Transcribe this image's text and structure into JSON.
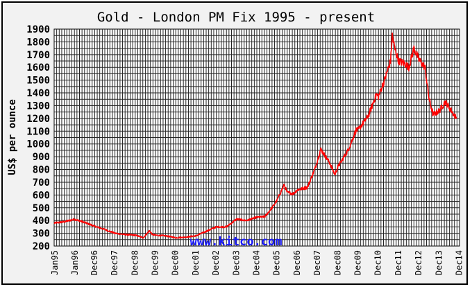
{
  "chart_data": {
    "type": "line",
    "title": "Gold - London PM Fix 1995 - present",
    "ylabel": "US$ per ounce",
    "xlabel": "",
    "watermark": "www.kitco.com",
    "ylim": [
      200,
      1900
    ],
    "yticks": [
      200,
      300,
      400,
      500,
      600,
      700,
      800,
      900,
      1000,
      1100,
      1200,
      1300,
      1400,
      1500,
      1600,
      1700,
      1800,
      1900
    ],
    "xlim": [
      1995.0,
      2015.0
    ],
    "xticks": [
      {
        "label": "Jan95",
        "t": 1995.0
      },
      {
        "label": "Jan96",
        "t": 1996.0
      },
      {
        "label": "Dec96",
        "t": 1996.95
      },
      {
        "label": "Dec97",
        "t": 1997.95
      },
      {
        "label": "Dec98",
        "t": 1998.95
      },
      {
        "label": "Dec99",
        "t": 1999.95
      },
      {
        "label": "Dec00",
        "t": 2000.95
      },
      {
        "label": "Dec01",
        "t": 2001.95
      },
      {
        "label": "Dec02",
        "t": 2002.95
      },
      {
        "label": "Dec03",
        "t": 2003.95
      },
      {
        "label": "Dec04",
        "t": 2004.95
      },
      {
        "label": "Dec05",
        "t": 2005.95
      },
      {
        "label": "Dec06",
        "t": 2006.95
      },
      {
        "label": "Dec07",
        "t": 2007.95
      },
      {
        "label": "Dec08",
        "t": 2008.95
      },
      {
        "label": "Dec09",
        "t": 2009.95
      },
      {
        "label": "Dec10",
        "t": 2010.95
      },
      {
        "label": "Dec11",
        "t": 2011.95
      },
      {
        "label": "Dec12",
        "t": 2012.95
      },
      {
        "label": "Dec13",
        "t": 2013.95
      },
      {
        "label": "Dec14",
        "t": 2014.95
      }
    ],
    "grid": true,
    "series": [
      {
        "color": "#ff0000",
        "x": [
          1995.0,
          1995.5,
          1996.0,
          1996.5,
          1997.0,
          1997.5,
          1998.0,
          1998.5,
          1999.0,
          1999.4,
          1999.7,
          1999.85,
          2000.0,
          2000.5,
          2001.0,
          2001.5,
          2002.0,
          2002.5,
          2003.0,
          2003.5,
          2004.0,
          2004.5,
          2005.0,
          2005.4,
          2005.8,
          2006.0,
          2006.35,
          2006.5,
          2006.8,
          2007.0,
          2007.5,
          2007.9,
          2008.15,
          2008.4,
          2008.6,
          2008.85,
          2009.0,
          2009.5,
          2009.9,
          2010.0,
          2010.5,
          2010.9,
          2011.0,
          2011.3,
          2011.6,
          2011.68,
          2011.8,
          2012.0,
          2012.3,
          2012.5,
          2012.75,
          2013.0,
          2013.3,
          2013.5,
          2013.7,
          2014.0,
          2014.3,
          2014.6,
          2014.85
        ],
        "y": [
          380,
          390,
          410,
          385,
          355,
          330,
          300,
          290,
          285,
          265,
          320,
          290,
          285,
          280,
          265,
          270,
          280,
          315,
          350,
          350,
          410,
          400,
          425,
          430,
          510,
          560,
          680,
          620,
          610,
          640,
          660,
          820,
          960,
          900,
          850,
          760,
          820,
          950,
          1110,
          1110,
          1220,
          1390,
          1370,
          1500,
          1650,
          1850,
          1750,
          1650,
          1630,
          1600,
          1750,
          1660,
          1600,
          1350,
          1230,
          1260,
          1330,
          1260,
          1200
        ]
      }
    ]
  }
}
